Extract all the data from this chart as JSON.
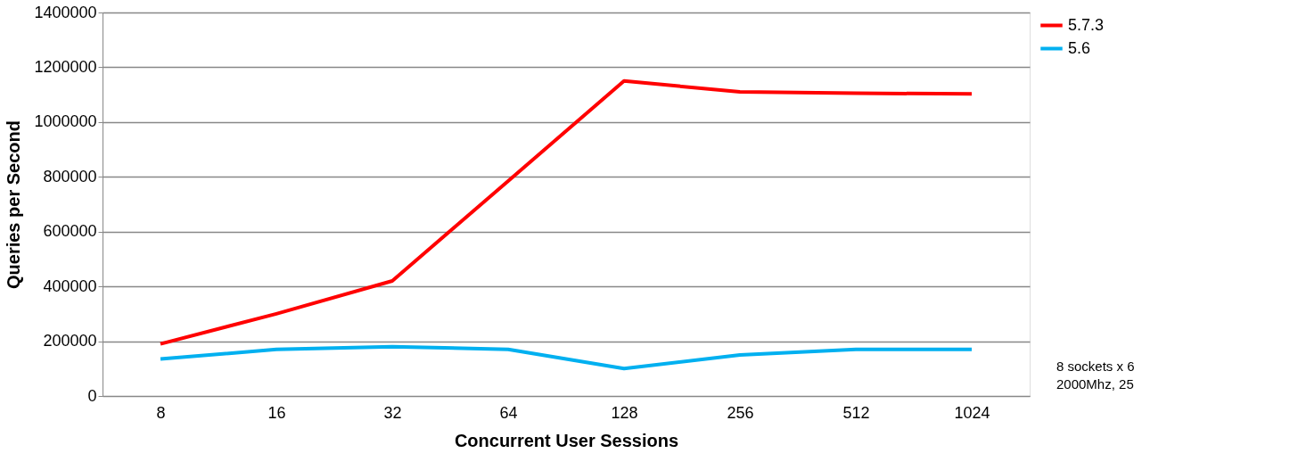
{
  "chart_data": {
    "type": "line",
    "xlabel": "Concurrent User Sessions",
    "ylabel": "Queries per Second",
    "categories": [
      "8",
      "16",
      "32",
      "64",
      "128",
      "256",
      "512",
      "1024"
    ],
    "series": [
      {
        "name": "5.7.3",
        "color": "#ff0000",
        "values": [
          190000,
          300000,
          420000,
          785000,
          1150000,
          1110000,
          1105000,
          1103000
        ]
      },
      {
        "name": "5.6",
        "color": "#00b0f0",
        "values": [
          135000,
          170000,
          180000,
          170000,
          100000,
          150000,
          170000,
          170000
        ]
      }
    ],
    "ylim": [
      0,
      1400000
    ],
    "yticks": [
      0,
      200000,
      400000,
      600000,
      800000,
      1000000,
      1200000,
      1400000
    ],
    "grid": "y",
    "legend": "right",
    "marker": "none",
    "line_style": "solid",
    "annotations": [
      "8 sockets x 6",
      "2000Mhz, 25"
    ]
  }
}
